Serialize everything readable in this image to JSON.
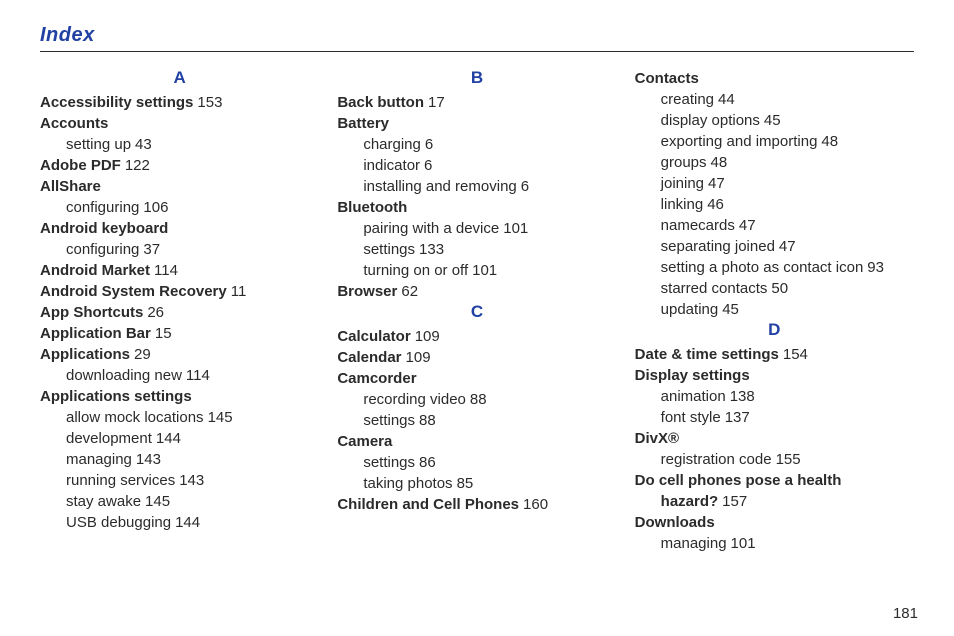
{
  "title": "Index",
  "page_number": "181",
  "colors": {
    "accent": "#2141a3",
    "text": "#2b2b2b",
    "rule": "#2c2c2c",
    "background": "#ffffff"
  },
  "columns": [
    {
      "items": [
        {
          "type": "letter",
          "text": "A"
        },
        {
          "type": "entry",
          "term": "Accessibility settings",
          "page": "153"
        },
        {
          "type": "entry",
          "term": "Accounts"
        },
        {
          "type": "sub",
          "text": "setting up",
          "page": "43"
        },
        {
          "type": "entry",
          "term": "Adobe PDF",
          "page": "122"
        },
        {
          "type": "entry",
          "term": "AllShare"
        },
        {
          "type": "sub",
          "text": "configuring",
          "page": "106"
        },
        {
          "type": "entry",
          "term": "Android keyboard"
        },
        {
          "type": "sub",
          "text": "configuring",
          "page": "37"
        },
        {
          "type": "entry",
          "term": "Android Market",
          "page": "114"
        },
        {
          "type": "entry",
          "term": "Android System Recovery",
          "page": "11"
        },
        {
          "type": "entry",
          "term": "App Shortcuts",
          "page": "26"
        },
        {
          "type": "entry",
          "term": "Application Bar",
          "page": "15"
        },
        {
          "type": "entry",
          "term": "Applications",
          "page": "29"
        },
        {
          "type": "sub",
          "text": "downloading new",
          "page": "114"
        },
        {
          "type": "entry",
          "term": "Applications settings"
        },
        {
          "type": "sub",
          "text": "allow mock locations",
          "page": "145"
        },
        {
          "type": "sub",
          "text": "development",
          "page": "144"
        },
        {
          "type": "sub",
          "text": "managing",
          "page": "143"
        },
        {
          "type": "sub",
          "text": "running services",
          "page": "143"
        },
        {
          "type": "sub",
          "text": "stay awake",
          "page": "145"
        },
        {
          "type": "sub",
          "text": "USB debugging",
          "page": "144"
        }
      ]
    },
    {
      "items": [
        {
          "type": "letter",
          "text": "B"
        },
        {
          "type": "entry",
          "term": "Back button",
          "page": "17"
        },
        {
          "type": "entry",
          "term": "Battery"
        },
        {
          "type": "sub",
          "text": "charging",
          "page": "6"
        },
        {
          "type": "sub",
          "text": "indicator",
          "page": "6"
        },
        {
          "type": "sub",
          "text": "installing and removing",
          "page": "6"
        },
        {
          "type": "entry",
          "term": "Bluetooth"
        },
        {
          "type": "sub",
          "text": "pairing with a device",
          "page": "101"
        },
        {
          "type": "sub",
          "text": "settings",
          "page": "133"
        },
        {
          "type": "sub",
          "text": "turning on or off",
          "page": "101"
        },
        {
          "type": "entry",
          "term": "Browser",
          "page": "62"
        },
        {
          "type": "letter",
          "text": "C"
        },
        {
          "type": "entry",
          "term": "Calculator",
          "page": "109"
        },
        {
          "type": "entry",
          "term": "Calendar",
          "page": "109"
        },
        {
          "type": "entry",
          "term": "Camcorder"
        },
        {
          "type": "sub",
          "text": "recording video",
          "page": "88"
        },
        {
          "type": "sub",
          "text": "settings",
          "page": "88"
        },
        {
          "type": "entry",
          "term": "Camera"
        },
        {
          "type": "sub",
          "text": "settings",
          "page": "86"
        },
        {
          "type": "sub",
          "text": "taking photos",
          "page": "85"
        },
        {
          "type": "entry",
          "term": "Children and Cell Phones",
          "page": "160"
        }
      ]
    },
    {
      "items": [
        {
          "type": "entry",
          "term": "Contacts"
        },
        {
          "type": "sub",
          "text": "creating",
          "page": "44"
        },
        {
          "type": "sub",
          "text": "display options",
          "page": "45"
        },
        {
          "type": "sub",
          "text": "exporting and importing",
          "page": "48"
        },
        {
          "type": "sub",
          "text": "groups",
          "page": "48"
        },
        {
          "type": "sub",
          "text": "joining",
          "page": "47"
        },
        {
          "type": "sub",
          "text": "linking",
          "page": "46"
        },
        {
          "type": "sub",
          "text": "namecards",
          "page": "47"
        },
        {
          "type": "sub",
          "text": "separating joined",
          "page": "47"
        },
        {
          "type": "sub",
          "text": "setting a photo as contact icon",
          "page": "93"
        },
        {
          "type": "sub",
          "text": "starred contacts",
          "page": "50"
        },
        {
          "type": "sub",
          "text": "updating",
          "page": "45"
        },
        {
          "type": "letter",
          "text": "D"
        },
        {
          "type": "entry",
          "term": "Date & time settings",
          "page": "154"
        },
        {
          "type": "entry",
          "term": "Display settings"
        },
        {
          "type": "sub",
          "text": "animation",
          "page": "138"
        },
        {
          "type": "sub",
          "text": "font style",
          "page": "137"
        },
        {
          "type": "entry",
          "term": "DivX®"
        },
        {
          "type": "sub",
          "text": "registration code",
          "page": "155"
        },
        {
          "type": "entry",
          "term": "Do cell phones pose a health"
        },
        {
          "type": "entry_indent",
          "term": "hazard?",
          "page": "157"
        },
        {
          "type": "entry",
          "term": "Downloads"
        },
        {
          "type": "sub",
          "text": "managing",
          "page": "101"
        }
      ]
    }
  ]
}
